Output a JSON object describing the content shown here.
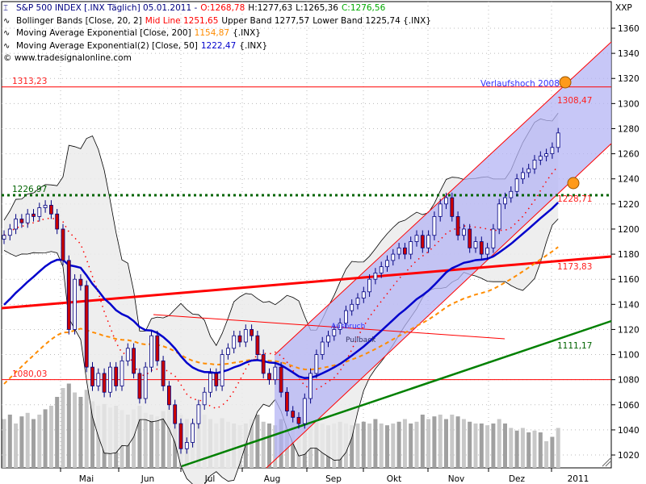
{
  "legend": {
    "main": {
      "icon": "candlestick-icon",
      "name": "S&P 500 INDEX [.INX  Täglich] 05.01.2011 -",
      "open": "O:1268,78",
      "high": "H:1277,63",
      "low": "L:1265,36",
      "close": "C:1276,56"
    },
    "bollinger": {
      "icon": "indicator-wave-icon",
      "name": "Bollinger Bands [Close, 20, 2]",
      "mid_label": "Mid Line 1251,65",
      "upper": "Upper Band 1277,57",
      "lower": "Lower Band 1225,74 {.INX}"
    },
    "ema200": {
      "icon": "indicator-wave-icon",
      "name": "Moving Average Exponential [Close, 200]",
      "value": "1154,87",
      "suffix": "{.INX}"
    },
    "ema50": {
      "icon": "indicator-wave-icon",
      "name": "Moving Average Exponential(2) [Close, 50]",
      "value": "1222,47",
      "suffix": "{.INX}"
    },
    "copyright": "© www.tradesignalonline.com"
  },
  "colors": {
    "up": "#ffffff",
    "down": "#cc0000",
    "candle_outline": "#000080",
    "ema50": "#0000cc",
    "ema200": "#ff8c00",
    "mid": "#ff0000",
    "channel": "#c8c8f8",
    "bands_fill": "#ebebeb",
    "support": "#006400",
    "green_trend": "#008000"
  },
  "chart_data": {
    "type": "candlestick",
    "symbol": "XXP",
    "y_axis": {
      "ticks": [
        1020,
        1040,
        1060,
        1080,
        1100,
        1120,
        1140,
        1160,
        1180,
        1200,
        1220,
        1240,
        1260,
        1280,
        1300,
        1320,
        1340,
        1360
      ],
      "ylim": [
        1010,
        1370
      ]
    },
    "x_axis": {
      "ticks": [
        "Mai",
        "Jun",
        "Jul",
        "Aug",
        "Sep",
        "Okt",
        "Nov",
        "Dez",
        "2011"
      ]
    },
    "grid": true,
    "closes": [
      1195,
      1200,
      1208,
      1205,
      1212,
      1210,
      1217,
      1219,
      1212,
      1200,
      1175,
      1120,
      1160,
      1155,
      1090,
      1075,
      1085,
      1070,
      1090,
      1075,
      1095,
      1105,
      1085,
      1065,
      1090,
      1115,
      1095,
      1075,
      1060,
      1045,
      1025,
      1030,
      1045,
      1060,
      1070,
      1085,
      1075,
      1100,
      1105,
      1115,
      1110,
      1120,
      1115,
      1100,
      1085,
      1080,
      1090,
      1070,
      1055,
      1050,
      1045,
      1065,
      1085,
      1100,
      1110,
      1115,
      1120,
      1125,
      1135,
      1140,
      1145,
      1150,
      1160,
      1165,
      1170,
      1175,
      1180,
      1185,
      1180,
      1190,
      1195,
      1185,
      1195,
      1210,
      1220,
      1225,
      1210,
      1195,
      1200,
      1185,
      1190,
      1180,
      1185,
      1200,
      1220,
      1225,
      1230,
      1240,
      1245,
      1248,
      1255,
      1258,
      1260,
      1265,
      1276.56
    ],
    "volume_relative": [
      0.55,
      0.6,
      0.5,
      0.58,
      0.62,
      0.55,
      0.6,
      0.66,
      0.7,
      0.8,
      0.9,
      0.95,
      0.85,
      0.8,
      0.88,
      0.75,
      0.7,
      0.72,
      0.68,
      0.7,
      0.65,
      0.6,
      0.66,
      0.7,
      0.62,
      0.6,
      0.58,
      0.64,
      0.7,
      0.66,
      0.6,
      0.55,
      0.52,
      0.58,
      0.6,
      0.55,
      0.5,
      0.56,
      0.52,
      0.5,
      0.48,
      0.5,
      0.55,
      0.6,
      0.52,
      0.5,
      0.48,
      0.55,
      0.5,
      0.52,
      0.45,
      0.5,
      0.55,
      0.52,
      0.5,
      0.48,
      0.5,
      0.52,
      0.5,
      0.48,
      0.5,
      0.52,
      0.5,
      0.55,
      0.5,
      0.48,
      0.5,
      0.52,
      0.55,
      0.5,
      0.52,
      0.6,
      0.55,
      0.58,
      0.6,
      0.55,
      0.6,
      0.58,
      0.55,
      0.52,
      0.5,
      0.5,
      0.48,
      0.5,
      0.55,
      0.5,
      0.45,
      0.42,
      0.45,
      0.4,
      0.42,
      0.4,
      0.3,
      0.35,
      0.45
    ],
    "horizontal_lines": [
      {
        "label": "1313,23",
        "value": 1313.23,
        "color": "#ff0000"
      },
      {
        "label": "1226,97",
        "value": 1226.97,
        "color": "#006400",
        "style": "dotted"
      },
      {
        "label": "1080,03",
        "value": 1080.03,
        "color": "#ff0000"
      }
    ],
    "annotations": {
      "high_2008": "Verlaufshoch 2008",
      "channel_upper": "1308,47",
      "channel_lower": "1228,71",
      "red_trend": "1173,83",
      "green_trend": "1111,17",
      "breakout": "Ausbruch",
      "pullback": "Pullback"
    },
    "last_values": {
      "ema200": 1154.87,
      "ema50": 1222.47,
      "bb_mid": 1251.65,
      "bb_upper": 1277.57,
      "bb_lower": 1225.74
    }
  }
}
